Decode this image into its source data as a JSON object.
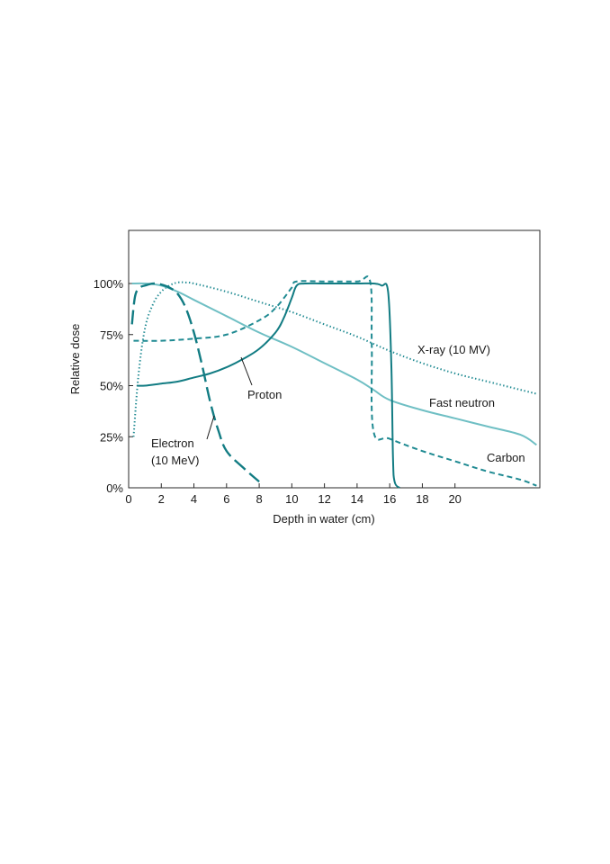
{
  "chart_data": {
    "type": "line",
    "title": "",
    "xlabel": "Depth in water (cm)",
    "ylabel": "Relative dose",
    "xlim": [
      0,
      25.2
    ],
    "ylim": [
      0,
      126
    ],
    "x_ticks": [
      0,
      2,
      4,
      6,
      8,
      10,
      12,
      14,
      16,
      18,
      20
    ],
    "y_ticks": [
      {
        "value": 0,
        "label": "0%"
      },
      {
        "value": 25,
        "label": "25%"
      },
      {
        "value": 50,
        "label": "50%"
      },
      {
        "value": 75,
        "label": "75%"
      },
      {
        "value": 100,
        "label": "100%"
      }
    ],
    "grid": false,
    "legend": "none",
    "series": [
      {
        "name": "X-ray (10 MV)",
        "style": "dotted",
        "color": "#1f8a92",
        "x": [
          0.3,
          0.6,
          1.0,
          1.5,
          2.0,
          2.5,
          3.0,
          3.5,
          4.0,
          6.0,
          8.0,
          10.0,
          12.0,
          14.0,
          16.0,
          18.0,
          20.0,
          22.0,
          24.0,
          25.0
        ],
        "y": [
          25,
          55,
          78,
          90,
          96,
          99,
          100.5,
          100.5,
          100,
          96,
          91,
          86,
          80,
          74,
          67,
          61,
          56,
          52,
          48,
          46
        ]
      },
      {
        "name": "Fast neutron",
        "style": "solid",
        "color": "#6fbfc4",
        "x": [
          0.2,
          1.0,
          2.0,
          3.0,
          4.0,
          6.0,
          8.0,
          10.0,
          12.0,
          14.0,
          15.0,
          16.0,
          18.0,
          20.0,
          22.0,
          24.0,
          25.0
        ],
        "y": [
          100,
          100,
          99,
          96,
          92,
          84,
          76,
          69,
          61,
          53,
          48,
          43,
          38,
          34,
          30,
          26,
          21
        ]
      },
      {
        "name": "Carbon",
        "style": "dashed",
        "color": "#1f8a92",
        "x": [
          0.3,
          2.0,
          4.0,
          6.0,
          8.0,
          9.0,
          10.0,
          10.3,
          12.0,
          14.0,
          14.8,
          14.9,
          15.0,
          16.0,
          18.0,
          20.0,
          22.0,
          24.0,
          25.0
        ],
        "y": [
          72,
          72,
          73,
          75,
          82,
          88,
          98,
          101,
          101,
          101,
          101,
          70,
          28,
          24,
          18,
          13,
          8,
          4,
          1
        ]
      },
      {
        "name": "Proton",
        "style": "solid",
        "color": "#127c83",
        "x": [
          0.5,
          1.0,
          2.0,
          3.0,
          4.0,
          5.0,
          6.0,
          7.0,
          8.0,
          9.0,
          9.5,
          10.0,
          10.3,
          10.8,
          12.0,
          14.0,
          15.0,
          15.5,
          15.9,
          16.1,
          16.2,
          16.3,
          16.6
        ],
        "y": [
          50,
          50,
          51,
          52,
          54,
          56,
          59,
          63,
          68,
          76,
          83,
          93,
          99,
          100,
          100,
          100,
          100,
          99,
          96,
          60,
          15,
          3,
          0
        ]
      },
      {
        "name": "Electron (10 MeV)",
        "style": "long-dash",
        "color": "#127c83",
        "x": [
          0.2,
          0.4,
          0.7,
          1.0,
          1.5,
          2.0,
          2.5,
          3.0,
          3.5,
          4.0,
          4.5,
          5.0,
          5.5,
          6.0,
          7.0,
          8.0
        ],
        "y": [
          80,
          94,
          98,
          99,
          100,
          99.5,
          98,
          95,
          88,
          76,
          60,
          42,
          28,
          18,
          10,
          3
        ]
      }
    ],
    "annotations": [
      {
        "id": "xray",
        "text": "X-ray (10 MV)"
      },
      {
        "id": "neutron",
        "text": "Fast neutron"
      },
      {
        "id": "carbon",
        "text": "Carbon"
      },
      {
        "id": "proton",
        "text": "Proton"
      },
      {
        "id": "electron1",
        "text": "Electron"
      },
      {
        "id": "electron2",
        "text": "(10 MeV)"
      }
    ]
  }
}
